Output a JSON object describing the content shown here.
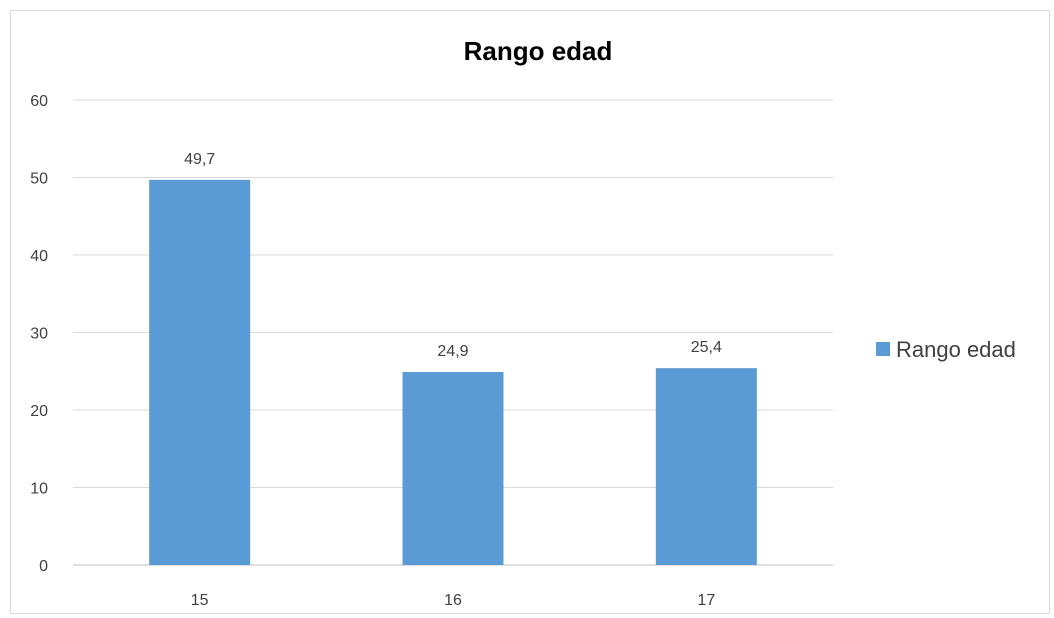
{
  "chart_data": {
    "type": "bar",
    "title": "Rango edad",
    "categories": [
      "15",
      "16",
      "17"
    ],
    "series": [
      {
        "name": "Rango edad",
        "values": [
          49.7,
          24.9,
          25.4
        ],
        "labels": [
          "49,7",
          "24,9",
          "25,4"
        ]
      }
    ],
    "ylim": [
      0,
      60
    ],
    "yticks": [
      0,
      10,
      20,
      30,
      40,
      50,
      60
    ],
    "grid": true,
    "legend": "right",
    "colors": {
      "bar": "#5b9bd5",
      "grid": "#d9d9d9",
      "axis": "#bfbfbf"
    }
  }
}
